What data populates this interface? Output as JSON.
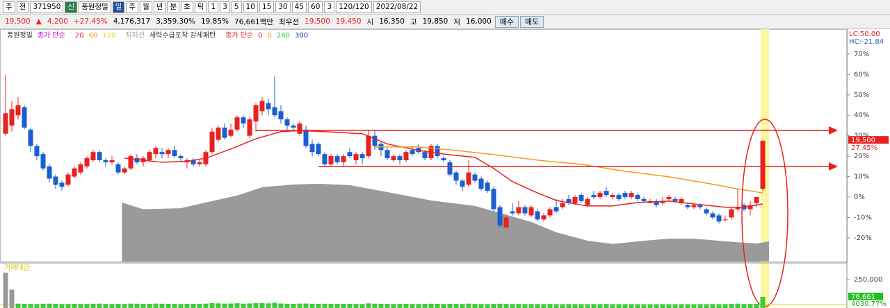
{
  "toolbar": {
    "items": [
      "주",
      "전",
      "371950",
      "신",
      "풍원정밀",
      "일",
      "주",
      "월",
      "년",
      "분",
      "초",
      "틱",
      "1",
      "3",
      "5",
      "10",
      "15",
      "30",
      "45",
      "60",
      "3",
      "120/120",
      "2022/08/22"
    ]
  },
  "quote": {
    "items": [
      "19,500",
      "▲",
      "4,200",
      "+27.45%",
      "4,176,317",
      "3,359.30%",
      "19.85%",
      "76,661백만",
      "최우선",
      "19,500",
      "19,450",
      "시",
      "16,350",
      "고",
      "19,850",
      "저",
      "16,000"
    ],
    "buttons": [
      "매수",
      "매도"
    ]
  },
  "legend": {
    "items": [
      "풍원정밀",
      "종가 단순",
      "20",
      "60",
      "120",
      "지지선",
      "세력수급포착 강세패턴",
      "종가 단순",
      "0",
      "0",
      "240",
      "300"
    ]
  },
  "chart_data": {
    "type": "candlestick",
    "lc_label": "LC:50.00",
    "hc_label": "HC:-21.84",
    "ylim": [
      -31.6,
      82.2
    ],
    "yticks": [
      {
        "value": 70,
        "label": "70%"
      },
      {
        "value": 60,
        "label": "60%"
      },
      {
        "value": 50,
        "label": "50%"
      },
      {
        "value": 40,
        "label": "40%"
      },
      {
        "value": 30,
        "label": "30%"
      },
      {
        "value": 20,
        "label": "20%"
      },
      {
        "value": 10,
        "label": "10%"
      },
      {
        "value": 0,
        "label": "0%"
      },
      {
        "value": -10,
        "label": "-10%"
      },
      {
        "value": -20,
        "label": "-20%"
      }
    ],
    "price_tag": {
      "value": 27.45,
      "labels": [
        "19,500",
        "27.45%"
      ]
    },
    "up_color": "#e8211e",
    "down_color": "#1a5fd0",
    "candles": [
      [
        31,
        41,
        60,
        30
      ],
      [
        35,
        43,
        47,
        32
      ],
      [
        40,
        45,
        49,
        38
      ],
      [
        44,
        34,
        45,
        33
      ],
      [
        33,
        25,
        34,
        22
      ],
      [
        25,
        20,
        26,
        18
      ],
      [
        21,
        14,
        22,
        13
      ],
      [
        15,
        9,
        16,
        7
      ],
      [
        10,
        6,
        11,
        4
      ],
      [
        7,
        5,
        8,
        3
      ],
      [
        6,
        11,
        12,
        5
      ],
      [
        10,
        14,
        15,
        9
      ],
      [
        12,
        16,
        17,
        11
      ],
      [
        15,
        19,
        20,
        14
      ],
      [
        18,
        22,
        23,
        17
      ],
      [
        22,
        18,
        23,
        17
      ],
      [
        18,
        17,
        19,
        15
      ],
      [
        17,
        18,
        20,
        16
      ],
      [
        16,
        12,
        17,
        11
      ],
      [
        12,
        14,
        15,
        11
      ],
      [
        14,
        20,
        21,
        13
      ],
      [
        19,
        17,
        21,
        16
      ],
      [
        17,
        19,
        20,
        15
      ],
      [
        18,
        22,
        23,
        17
      ],
      [
        21,
        24,
        25,
        19
      ],
      [
        22,
        21,
        24,
        19
      ],
      [
        21,
        23,
        24,
        19
      ],
      [
        23,
        20,
        25,
        19
      ],
      [
        20,
        19,
        21,
        17
      ],
      [
        17,
        18,
        19,
        14
      ],
      [
        18,
        16,
        19,
        15
      ],
      [
        16,
        17,
        18,
        15
      ],
      [
        16,
        22,
        23,
        15
      ],
      [
        22,
        32,
        34,
        21
      ],
      [
        28,
        34,
        35,
        27
      ],
      [
        34,
        29,
        36,
        28
      ],
      [
        30,
        33,
        36,
        29
      ],
      [
        33,
        39,
        40,
        32
      ],
      [
        39,
        36,
        40,
        34
      ],
      [
        30,
        38,
        39,
        29
      ],
      [
        37,
        45,
        46,
        32
      ],
      [
        42,
        47,
        49,
        40
      ],
      [
        46,
        43,
        48,
        40
      ],
      [
        44,
        40,
        59,
        39
      ],
      [
        42,
        38,
        45,
        36
      ],
      [
        38,
        35,
        39,
        33
      ],
      [
        35,
        34,
        36,
        32
      ],
      [
        31,
        36,
        37,
        30
      ],
      [
        33,
        25,
        35,
        24
      ],
      [
        26,
        22,
        28,
        20
      ],
      [
        26,
        21,
        27,
        20
      ],
      [
        21,
        16,
        22,
        15
      ],
      [
        16,
        20,
        21,
        15
      ],
      [
        20,
        17,
        21,
        16
      ],
      [
        17,
        20,
        21,
        15
      ],
      [
        22,
        20,
        24,
        19
      ],
      [
        18,
        21,
        22,
        16
      ],
      [
        21,
        19,
        22,
        16
      ],
      [
        20,
        30,
        33,
        19
      ],
      [
        30,
        25,
        33,
        23
      ],
      [
        26,
        23,
        27,
        20
      ],
      [
        23,
        19,
        24,
        18
      ],
      [
        18,
        20,
        21,
        17
      ],
      [
        20,
        18,
        21,
        16
      ],
      [
        18,
        22,
        23,
        17
      ],
      [
        23,
        21,
        25,
        20
      ],
      [
        24,
        22,
        26,
        21
      ],
      [
        22,
        19,
        23,
        18
      ],
      [
        19,
        25,
        26,
        18
      ],
      [
        25,
        20,
        26,
        19
      ],
      [
        19,
        18,
        20,
        17
      ],
      [
        17,
        11,
        18,
        10
      ],
      [
        12,
        8,
        13,
        6
      ],
      [
        8,
        5,
        9,
        3
      ],
      [
        6,
        12,
        18,
        5
      ],
      [
        11,
        8,
        12,
        7
      ],
      [
        9,
        4,
        10,
        3
      ],
      [
        7,
        3,
        8,
        2
      ],
      [
        4,
        -6,
        5,
        -7
      ],
      [
        -5,
        -14,
        -4,
        -15
      ],
      [
        -15,
        -10,
        -9,
        -15
      ],
      [
        -7,
        -8,
        -3,
        -9
      ],
      [
        -8,
        -5,
        -2,
        -9
      ],
      [
        -5,
        -8,
        -4,
        -9
      ],
      [
        -9,
        -5,
        -4,
        -10
      ],
      [
        -7,
        -11,
        -6,
        -12
      ],
      [
        -11,
        -9,
        -8,
        -12
      ],
      [
        -9,
        -6,
        -5,
        -10
      ],
      [
        -5,
        -7,
        -1,
        -8
      ],
      [
        -5,
        -3,
        -1,
        -6
      ],
      [
        -1,
        -3,
        1,
        -4
      ],
      [
        -3,
        0,
        1,
        -4
      ],
      [
        1,
        -2,
        2,
        -3
      ],
      [
        -4,
        -1,
        0,
        -5
      ],
      [
        1,
        0,
        3,
        -1
      ],
      [
        0,
        2,
        3,
        -1
      ],
      [
        3,
        1,
        5,
        0
      ],
      [
        0,
        1,
        2,
        -1
      ],
      [
        1,
        -1,
        2,
        -2
      ],
      [
        2,
        0,
        3,
        -1
      ],
      [
        0,
        2,
        3,
        -1
      ],
      [
        1,
        -1,
        2,
        -2
      ],
      [
        -1,
        -2,
        0,
        -3
      ],
      [
        -3,
        -2,
        -1,
        -3
      ],
      [
        -2,
        -4,
        -1,
        -5
      ],
      [
        -3,
        -2,
        0,
        -4
      ],
      [
        -1,
        0,
        1,
        -2
      ],
      [
        -1,
        -2,
        0,
        -3
      ],
      [
        -3,
        -1,
        0,
        -4
      ],
      [
        -4,
        -5,
        -3,
        -6
      ],
      [
        -5,
        -4,
        -3,
        -6
      ],
      [
        -4,
        -5,
        -3,
        -6
      ],
      [
        -6,
        -8,
        -5,
        -9
      ],
      [
        -8,
        -10,
        -7,
        -11
      ],
      [
        -9,
        -12,
        -8,
        -13
      ],
      [
        -11,
        -11,
        -9,
        -12
      ],
      [
        -10,
        -6,
        -5,
        -11
      ],
      [
        -6,
        -5,
        4,
        -7
      ],
      [
        -4,
        -6,
        -3,
        -7
      ],
      [
        -6,
        -4,
        -2,
        -9
      ],
      [
        -3,
        0,
        0,
        -5
      ],
      [
        4,
        27.45,
        28,
        3
      ]
    ],
    "series": [
      {
        "name": "20",
        "color": "#e8211e",
        "x": [
          19,
          25,
          29,
          32,
          36,
          40,
          44,
          47,
          51,
          57,
          61,
          66,
          70,
          75,
          78,
          81,
          85,
          88,
          93,
          97,
          101,
          106,
          110,
          115,
          118,
          121
        ],
        "values": [
          19,
          17,
          17.5,
          19,
          23.5,
          28.5,
          32,
          32.5,
          32,
          31,
          26,
          22.8,
          21,
          19.4,
          14,
          7.5,
          2,
          -1.7,
          -4.4,
          -4.4,
          -2.7,
          -2,
          -3.4,
          -5,
          -5,
          -3.4
        ]
      },
      {
        "name": "60",
        "color": "#f39a1e",
        "x": [
          59,
          66,
          72,
          79,
          86,
          92,
          99,
          106,
          112,
          117,
          121
        ],
        "values": [
          24.5,
          24.5,
          22.8,
          20.4,
          17.7,
          16,
          12.6,
          9.9,
          6.8,
          4,
          2
        ]
      }
    ],
    "band": {
      "color": "#9a9a9a",
      "x": [
        18.6,
        22,
        28,
        32,
        37,
        41,
        46,
        50,
        55,
        61,
        68,
        75,
        79,
        84,
        88,
        93,
        97,
        101,
        106,
        110,
        115,
        120,
        122
      ],
      "values": [
        -2.7,
        -6,
        -5.5,
        -2.7,
        0.7,
        4.8,
        6.1,
        6.5,
        5.8,
        2.4,
        -1.7,
        -4.4,
        -7.8,
        -12.2,
        -17.3,
        -21.4,
        -23,
        -21.7,
        -20.4,
        -20.4,
        -21.7,
        -22.8,
        -21.7
      ]
    },
    "volume": {
      "title": "거래대금",
      "color": "#3ccc3c",
      "ylim": [
        0,
        410000
      ],
      "yticks": [
        {
          "value": 250000,
          "label": "250,000"
        }
      ],
      "last_labels": [
        "76,661",
        "4030.77%"
      ],
      "values": [
        320000,
        150000,
        9000,
        7000,
        6000,
        5000,
        8000,
        9000,
        7000,
        5000,
        6000,
        7000,
        5000,
        6000,
        8000,
        9000,
        6000,
        5000,
        7000,
        6000,
        9000,
        8000,
        6000,
        7000,
        9000,
        8000,
        7000,
        6000,
        5000,
        6000,
        7000,
        6000,
        9000,
        14000,
        12000,
        9000,
        10000,
        13000,
        9000,
        11000,
        15000,
        14000,
        12000,
        18000,
        10000,
        8000,
        7000,
        9000,
        10000,
        8000,
        7000,
        8000,
        6000,
        7000,
        6000,
        7000,
        6000,
        5000,
        12000,
        9000,
        7000,
        6000,
        5000,
        6000,
        7000,
        6000,
        5000,
        6000,
        8000,
        7000,
        5000,
        7000,
        6000,
        5000,
        9000,
        6000,
        5000,
        4000,
        7000,
        8000,
        6000,
        5000,
        5000,
        4000,
        5000,
        4000,
        4000,
        5000,
        4000,
        4000,
        5000,
        4000,
        4000,
        3000,
        4000,
        4000,
        5000,
        4000,
        3000,
        3000,
        4000,
        3000,
        3000,
        3000,
        3000,
        4000,
        3000,
        3000,
        3000,
        3000,
        3000,
        4000,
        4000,
        5000,
        4000,
        4000,
        6000,
        9000,
        5000,
        6000,
        8000,
        76661
      ]
    }
  }
}
